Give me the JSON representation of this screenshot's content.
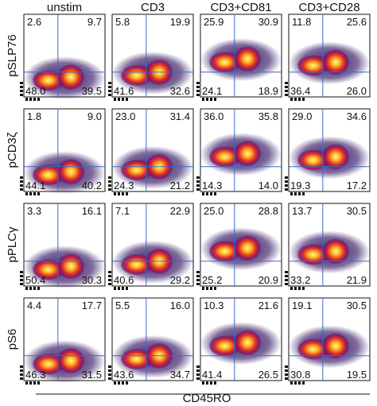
{
  "columns": [
    "unstim",
    "CD3",
    "CD3+CD81",
    "CD3+CD28"
  ],
  "rows": [
    {
      "label": "pSLP76",
      "quadrants": [
        [
          "2.6",
          "9.7",
          "48.0",
          "39.5"
        ],
        [
          "5.8",
          "19.9",
          "41.6",
          "32.6"
        ],
        [
          "25.9",
          "30.9",
          "24.1",
          "18.9"
        ],
        [
          "11.8",
          "25.6",
          "36.4",
          "26.0"
        ]
      ]
    },
    {
      "label": "pCD3ζ",
      "quadrants": [
        [
          "1.8",
          "9.0",
          "44.1",
          "40.2"
        ],
        [
          "23.0",
          "31.4",
          "24.3",
          "21.2"
        ],
        [
          "36.0",
          "35.8",
          "14.3",
          "14.0"
        ],
        [
          "29.0",
          "34.6",
          "19.3",
          "17.2"
        ]
      ]
    },
    {
      "label": "pPLCγ",
      "quadrants": [
        [
          "3.3",
          "16.1",
          "50.4",
          "30.3"
        ],
        [
          "7.1",
          "22.9",
          "40.6",
          "29.2"
        ],
        [
          "25.0",
          "28.8",
          "25.2",
          "20.9"
        ],
        [
          "13.7",
          "30.5",
          "33.2",
          "21.9"
        ]
      ]
    },
    {
      "label": "pS6",
      "quadrants": [
        [
          "4.4",
          "17.7",
          "46.3",
          "31.5"
        ],
        [
          "5.5",
          "16.0",
          "43.6",
          "34.7"
        ],
        [
          "10.3",
          "21.6",
          "41.4",
          "26.5"
        ],
        [
          "19.1",
          "30.5",
          "30.8",
          "19.5"
        ]
      ]
    }
  ],
  "x_axis_label": "CD45RO"
}
